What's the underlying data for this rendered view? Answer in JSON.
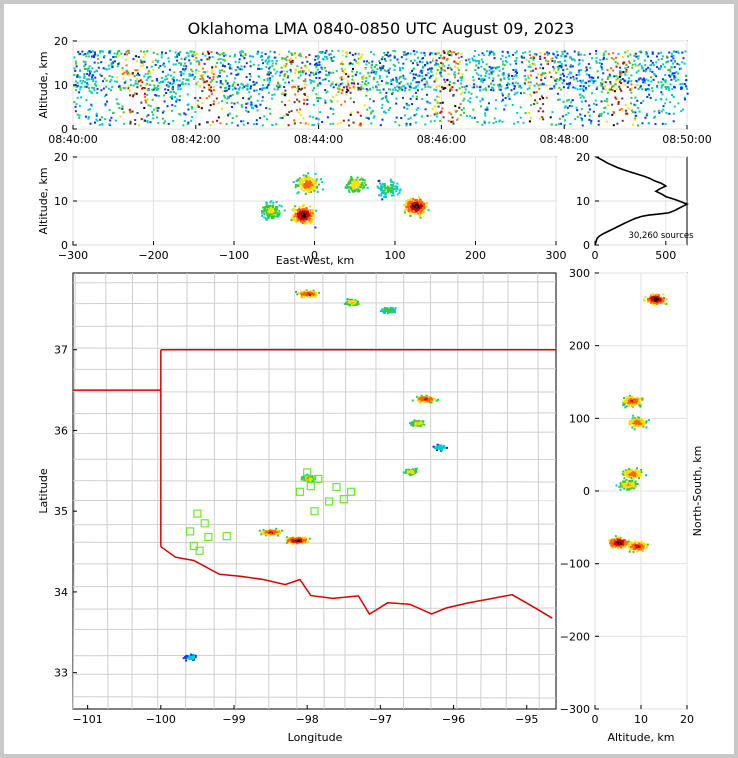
{
  "chart_data": [
    {
      "type": "heatmap",
      "panel": "time-altitude",
      "title": "Oklahoma LMA 0840-0850 UTC August 09, 2023",
      "xlabel": "",
      "ylabel": "Altitude, km",
      "x_ticks": [
        "08:40:00",
        "08:42:00",
        "08:44:00",
        "08:46:00",
        "08:48:00",
        "08:50:00"
      ],
      "xlim_minutes": [
        0,
        10
      ],
      "ylim": [
        0,
        20
      ],
      "y_ticks": [
        0,
        10,
        20
      ],
      "band_km": [
        9,
        18
      ],
      "max_density_minutes": [
        1.0,
        2.2,
        3.6,
        4.5,
        6.1,
        7.6,
        8.9
      ],
      "grid": true
    },
    {
      "type": "heatmap",
      "panel": "east-west-altitude",
      "xlabel": "East-West, km",
      "ylabel": "Altitude, km",
      "xlim": [
        -300,
        300
      ],
      "x_ticks": [
        -300,
        -200,
        -100,
        0,
        100,
        200,
        300
      ],
      "ylim": [
        0,
        20
      ],
      "y_ticks": [
        0,
        10,
        20
      ],
      "clusters": [
        {
          "x": -55,
          "altitude": 8,
          "density": 0.5
        },
        {
          "x": -15,
          "altitude": 7,
          "density": 0.95
        },
        {
          "x": -10,
          "altitude": 14,
          "density": 0.7
        },
        {
          "x": 50,
          "altitude": 14,
          "density": 0.55
        },
        {
          "x": 90,
          "altitude": 13,
          "density": 0.4
        },
        {
          "x": 125,
          "altitude": 9,
          "density": 0.95
        }
      ]
    },
    {
      "type": "line",
      "panel": "source-histogram",
      "xlabel": "",
      "ylabel": "",
      "xlim": [
        0,
        650
      ],
      "x_ticks": [
        0,
        500
      ],
      "ylim": [
        0,
        20
      ],
      "y_ticks": [
        0,
        10,
        20
      ],
      "annotation": "30,260 sources",
      "x": [
        0,
        5,
        10,
        15,
        30,
        60,
        100,
        150,
        200,
        240,
        280,
        330,
        380,
        440,
        520,
        560,
        590,
        620,
        650,
        610,
        560,
        500,
        470,
        430,
        460,
        500,
        470,
        420,
        390,
        350,
        290,
        230,
        160,
        90,
        40,
        10
      ],
      "y": [
        0,
        0.5,
        1.0,
        1.5,
        2.0,
        2.6,
        3.2,
        4.0,
        4.8,
        5.4,
        6.0,
        6.5,
        6.8,
        7.0,
        7.3,
        7.8,
        8.3,
        8.8,
        9.3,
        9.8,
        10.4,
        11.0,
        11.6,
        12.2,
        12.8,
        13.4,
        14.0,
        14.6,
        15.1,
        15.6,
        16.2,
        16.8,
        17.6,
        18.6,
        19.5,
        20.0
      ]
    },
    {
      "type": "scatter",
      "panel": "plan-view",
      "xlabel": "Longitude",
      "ylabel": "Latitude",
      "xlim": [
        -101.2,
        -94.6
      ],
      "x_ticks": [
        -101,
        -100,
        -99,
        -98,
        -97,
        -96,
        -95
      ],
      "ylim": [
        32.55,
        37.95
      ],
      "y_ticks": [
        33,
        34,
        35,
        36,
        37
      ],
      "stations": [
        {
          "lon": -99.6,
          "lat": 34.75
        },
        {
          "lon": -99.5,
          "lat": 34.97
        },
        {
          "lon": -99.4,
          "lat": 34.85
        },
        {
          "lon": -99.35,
          "lat": 34.68
        },
        {
          "lon": -99.55,
          "lat": 34.57
        },
        {
          "lon": -99.47,
          "lat": 34.51
        },
        {
          "lon": -99.1,
          "lat": 34.69
        },
        {
          "lon": -98.0,
          "lat": 35.48
        },
        {
          "lon": -98.1,
          "lat": 35.24
        },
        {
          "lon": -97.95,
          "lat": 35.31
        },
        {
          "lon": -97.85,
          "lat": 35.4
        },
        {
          "lon": -97.7,
          "lat": 35.12
        },
        {
          "lon": -97.6,
          "lat": 35.3
        },
        {
          "lon": -97.5,
          "lat": 35.15
        },
        {
          "lon": -97.4,
          "lat": 35.24
        },
        {
          "lon": -97.9,
          "lat": 35.0
        }
      ],
      "storms": [
        {
          "lon": -98.0,
          "lat": 37.7,
          "density": 0.8
        },
        {
          "lon": -97.4,
          "lat": 37.6,
          "density": 0.6
        },
        {
          "lon": -96.9,
          "lat": 37.5,
          "density": 0.45
        },
        {
          "lon": -96.4,
          "lat": 36.4,
          "density": 0.8
        },
        {
          "lon": -96.5,
          "lat": 36.1,
          "density": 0.6
        },
        {
          "lon": -96.6,
          "lat": 35.5,
          "density": 0.55
        },
        {
          "lon": -98.0,
          "lat": 35.42,
          "density": 0.6
        },
        {
          "lon": -98.15,
          "lat": 34.65,
          "density": 0.95
        },
        {
          "lon": -98.5,
          "lat": 34.75,
          "density": 0.8
        },
        {
          "lon": -96.2,
          "lat": 35.8,
          "density": 0.3
        },
        {
          "lon": -99.6,
          "lat": 33.2,
          "density": 0.25
        }
      ]
    },
    {
      "type": "heatmap",
      "panel": "altitude-north-south",
      "xlabel": "Altitude, km",
      "ylabel": "North-South, km",
      "xlim": [
        0,
        20
      ],
      "x_ticks": [
        0,
        10,
        20
      ],
      "ylim": [
        -300,
        300
      ],
      "y_ticks": [
        -300,
        -200,
        -100,
        0,
        100,
        200,
        300
      ],
      "clusters": [
        {
          "altitude": 13,
          "y": 265,
          "density": 0.95
        },
        {
          "altitude": 8,
          "y": 125,
          "density": 0.75
        },
        {
          "altitude": 9,
          "y": 95,
          "density": 0.7
        },
        {
          "altitude": 8,
          "y": 25,
          "density": 0.7
        },
        {
          "altitude": 7,
          "y": 10,
          "density": 0.6
        },
        {
          "altitude": 5,
          "y": -70,
          "density": 0.95
        },
        {
          "altitude": 9,
          "y": -75,
          "density": 0.8
        }
      ]
    }
  ]
}
